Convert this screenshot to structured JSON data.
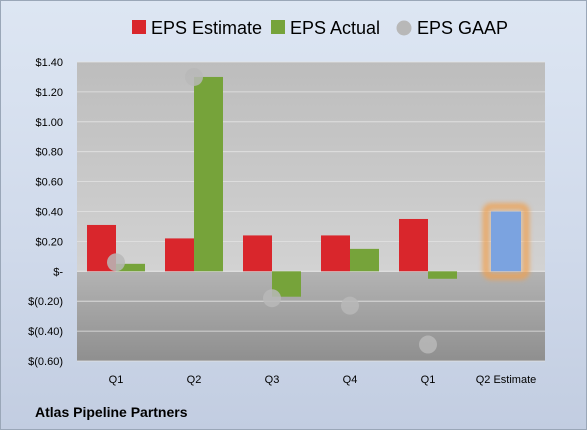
{
  "chart_data": {
    "type": "bar",
    "categories": [
      "Q1",
      "Q2",
      "Q3",
      "Q4",
      "Q1",
      "Q2 Estimate"
    ],
    "series": [
      {
        "name": "EPS Estimate",
        "values": [
          0.31,
          0.22,
          0.24,
          0.24,
          0.35,
          null
        ]
      },
      {
        "name": "EPS Actual",
        "values": [
          0.05,
          1.3,
          -0.17,
          0.15,
          -0.05,
          null
        ]
      },
      {
        "name": "EPS GAAP",
        "type": "scatter",
        "values": [
          0.06,
          1.3,
          -0.18,
          -0.23,
          -0.49,
          null
        ]
      },
      {
        "values": [
          null,
          null,
          null,
          null,
          null,
          0.4
        ]
      }
    ],
    "y_ticks": [
      "$1.40",
      "$1.20",
      "$1.00",
      "$0.80",
      "$0.60",
      "$0.40",
      "$0.20",
      "$-",
      "$(0.20)",
      "$(0.40)",
      "$(0.60)"
    ],
    "ylim": [
      -0.6,
      1.4
    ],
    "grid": true,
    "legend": "top",
    "footer": "Atlas Pipeline Partners"
  },
  "colors": {
    "estimate": "#d9262c",
    "actual": "#76a33a",
    "gaap": "#b8b8b8",
    "q2estimate": "#7ba3e0",
    "q2glow": "#f0a050",
    "plot_pos": "#c6c6c6",
    "plot_neg": "#a3a3a3"
  }
}
